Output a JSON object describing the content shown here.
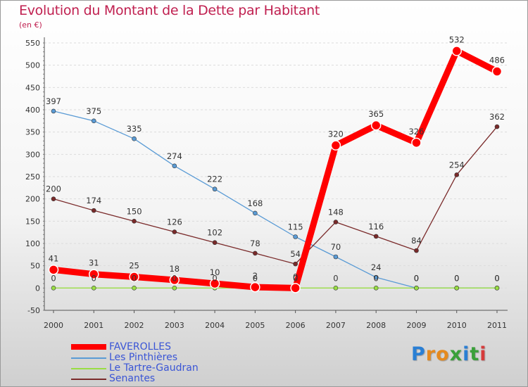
{
  "header": {
    "title": "Evolution du Montant de la Dette par Habitant",
    "subtitle": "(en €)"
  },
  "logo": {
    "letters": [
      "P",
      "r",
      "o",
      "x",
      "i",
      "t",
      "i"
    ],
    "colors": [
      "#2a7fd4",
      "#e58a1f",
      "#e58a1f",
      "#3aa03a",
      "#2a7fd4",
      "#3aa03a",
      "#d63b3b"
    ]
  },
  "chart_data": {
    "type": "line",
    "title": "Evolution du Montant de la Dette par Habitant",
    "ylabel": "(en €)",
    "xlabel": "",
    "x": [
      "2000",
      "2001",
      "2002",
      "2003",
      "2004",
      "2005",
      "2006",
      "2007",
      "2008",
      "2009",
      "2010",
      "2011"
    ],
    "ylim": [
      -50,
      550
    ],
    "yticks": [
      -50,
      0,
      50,
      100,
      150,
      200,
      250,
      300,
      350,
      400,
      450,
      500,
      550
    ],
    "grid": "horizontal",
    "legend_position": "bottom-left",
    "series": [
      {
        "name": "FAVEROLLES",
        "color": "#ff0000",
        "values": [
          41,
          31,
          25,
          18,
          10,
          2,
          0,
          320,
          365,
          326,
          532,
          486
        ],
        "labels": [
          "41",
          "31",
          "25",
          "18",
          "10",
          "2",
          "0",
          "320",
          "365",
          "326",
          "532",
          "486"
        ]
      },
      {
        "name": "Les Pinthières",
        "color": "#5a9bd5",
        "values": [
          397,
          375,
          335,
          274,
          222,
          168,
          115,
          70,
          24,
          0,
          0,
          0
        ],
        "labels": [
          "397",
          "375",
          "335",
          "274",
          "222",
          "168",
          "115",
          "70",
          "24",
          "0",
          "0",
          "0"
        ]
      },
      {
        "name": "Le Tartre-Gaudran",
        "color": "#99dd44",
        "values": [
          0,
          0,
          0,
          0,
          0,
          0,
          0,
          0,
          0,
          0,
          0,
          0
        ],
        "labels": [
          "0",
          "0",
          "0",
          "0",
          "0",
          "0",
          "0",
          "0",
          "0",
          "0",
          "0",
          "0"
        ]
      },
      {
        "name": "Senantes",
        "color": "#7a2a2a",
        "values": [
          200,
          174,
          150,
          126,
          102,
          78,
          54,
          148,
          116,
          84,
          254,
          362
        ],
        "labels": [
          "200",
          "174",
          "150",
          "126",
          "102",
          "78",
          "54",
          "148",
          "116",
          "84",
          "254",
          "362"
        ]
      }
    ]
  }
}
